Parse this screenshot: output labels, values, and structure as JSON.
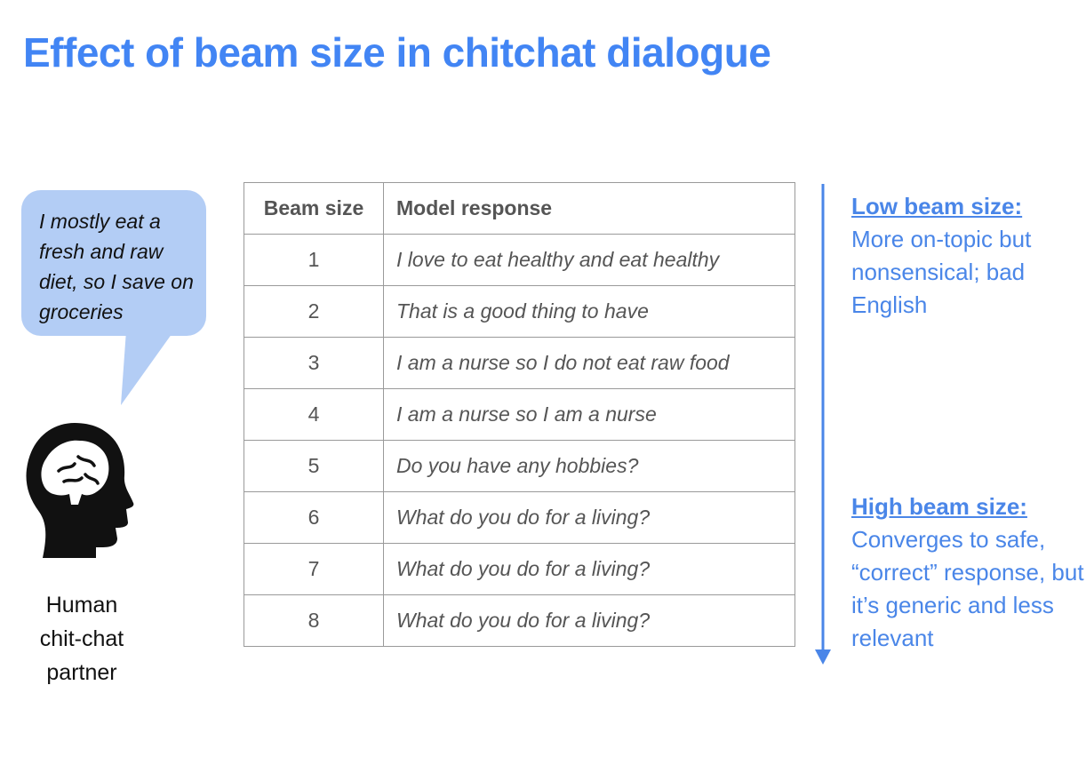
{
  "slide": {
    "title": "Effect of beam size in chitchat dialogue"
  },
  "human": {
    "utterance": "I mostly eat a fresh and raw diet, so I save on groceries",
    "label_lines": [
      "Human",
      "chit-chat",
      "partner"
    ]
  },
  "table": {
    "headers": [
      "Beam size",
      "Model response"
    ],
    "rows": [
      {
        "beam": "1",
        "response": "I love to eat healthy and eat healthy"
      },
      {
        "beam": "2",
        "response": "That is a good thing to have"
      },
      {
        "beam": "3",
        "response": "I am a nurse so I do not eat raw food"
      },
      {
        "beam": "4",
        "response": "I am a nurse so I am a nurse"
      },
      {
        "beam": "5",
        "response": "Do you have any hobbies?"
      },
      {
        "beam": "6",
        "response": "What do you do for a living?"
      },
      {
        "beam": "7",
        "response": "What do you do for a living?"
      },
      {
        "beam": "8",
        "response": "What do you do for a living?"
      }
    ]
  },
  "notes": {
    "low": {
      "heading": "Low beam size:",
      "body": "More on-topic but nonsensical; bad English"
    },
    "high": {
      "heading": "High beam size:",
      "body": "Converges to safe, “correct” response, but it’s generic and less relevant"
    }
  },
  "colors": {
    "title": "#4285f4",
    "bubble": "#b3cdf5",
    "notes": "#4a86e8",
    "table_border": "#9a9a9a"
  },
  "icons": {
    "head": "human-head-brain-icon",
    "arrow": "arrow-down-icon"
  }
}
